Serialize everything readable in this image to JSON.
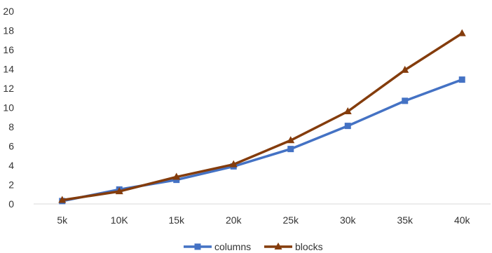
{
  "chart_data": {
    "type": "line",
    "title": "",
    "xlabel": "",
    "ylabel": "",
    "categories": [
      "5k",
      "10K",
      "15k",
      "20k",
      "25k",
      "30k",
      "35k",
      "40k"
    ],
    "ylim": [
      0,
      20
    ],
    "yticks": [
      0,
      2,
      4,
      6,
      8,
      10,
      12,
      14,
      16,
      18,
      20
    ],
    "grid": false,
    "legend": "bottom",
    "series": [
      {
        "name": "columns",
        "color": "#4472C4",
        "marker": "square",
        "values": [
          0.3,
          1.5,
          2.5,
          3.9,
          5.7,
          8.1,
          10.7,
          12.9
        ]
      },
      {
        "name": "blocks",
        "color": "#843C0C",
        "marker": "triangle",
        "values": [
          0.4,
          1.3,
          2.8,
          4.1,
          6.6,
          9.6,
          13.9,
          17.7
        ]
      }
    ]
  }
}
